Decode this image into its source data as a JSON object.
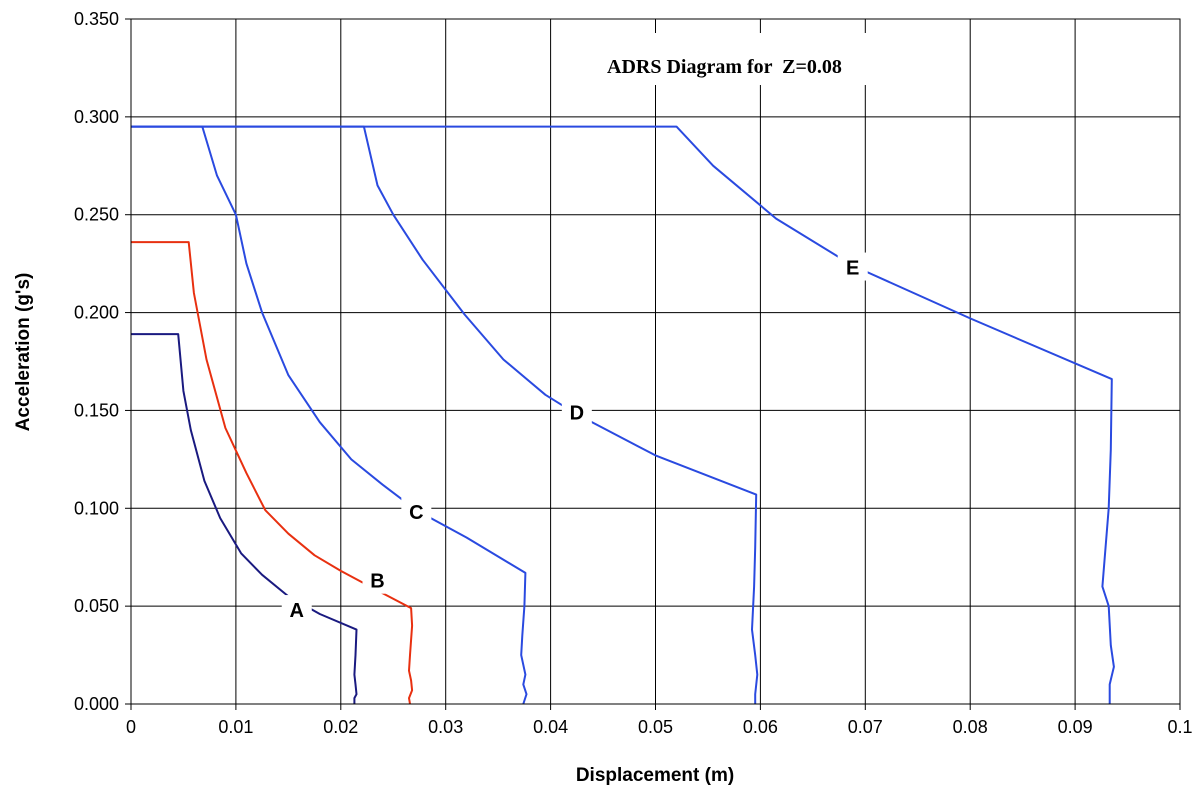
{
  "chart_data": {
    "type": "line",
    "title": "ADRS Diagram for  Z=0.08",
    "xlabel": "Displacement (m)",
    "ylabel": "Acceleration (g's)",
    "xlim": [
      0,
      0.1
    ],
    "ylim": [
      0,
      0.35
    ],
    "x_ticks": [
      "0",
      "0.01",
      "0.02",
      "0.03",
      "0.04",
      "0.05",
      "0.06",
      "0.07",
      "0.08",
      "0.09",
      "0.1"
    ],
    "y_ticks": [
      "0.000",
      "0.050",
      "0.100",
      "0.150",
      "0.200",
      "0.250",
      "0.300",
      "0.350"
    ],
    "grid": true,
    "legend": "none",
    "series": [
      {
        "name": "A",
        "color": "#1a1a80",
        "label_at": [
          0.0158,
          0.048
        ],
        "points": [
          [
            0,
            0.189
          ],
          [
            0.0045,
            0.189
          ],
          [
            0.005,
            0.16
          ],
          [
            0.0057,
            0.14
          ],
          [
            0.007,
            0.114
          ],
          [
            0.0085,
            0.095
          ],
          [
            0.0105,
            0.077
          ],
          [
            0.0125,
            0.066
          ],
          [
            0.015,
            0.055
          ],
          [
            0.018,
            0.046
          ],
          [
            0.0215,
            0.038
          ],
          [
            0.0214,
            0.025
          ],
          [
            0.0213,
            0.015
          ],
          [
            0.0214,
            0.01
          ],
          [
            0.0215,
            0.005
          ],
          [
            0.0213,
            0.003
          ],
          [
            0.0213,
            0.0
          ]
        ]
      },
      {
        "name": "B",
        "color": "#e83010",
        "label_at": [
          0.0235,
          0.063
        ],
        "points": [
          [
            0,
            0.236
          ],
          [
            0.0055,
            0.236
          ],
          [
            0.006,
            0.21
          ],
          [
            0.0072,
            0.176
          ],
          [
            0.009,
            0.141
          ],
          [
            0.011,
            0.118
          ],
          [
            0.0128,
            0.099
          ],
          [
            0.015,
            0.087
          ],
          [
            0.0175,
            0.076
          ],
          [
            0.02,
            0.068
          ],
          [
            0.0235,
            0.058
          ],
          [
            0.0267,
            0.049
          ],
          [
            0.0268,
            0.04
          ],
          [
            0.0266,
            0.025
          ],
          [
            0.0265,
            0.017
          ],
          [
            0.0267,
            0.012
          ],
          [
            0.0268,
            0.007
          ],
          [
            0.0265,
            0.003
          ],
          [
            0.0266,
            0.0
          ]
        ]
      },
      {
        "name": "C",
        "color": "#2a4ae0",
        "label_at": [
          0.0272,
          0.098
        ],
        "points": [
          [
            0,
            0.295
          ],
          [
            0.0068,
            0.295
          ],
          [
            0.0082,
            0.27
          ],
          [
            0.01,
            0.25
          ],
          [
            0.011,
            0.225
          ],
          [
            0.0125,
            0.2
          ],
          [
            0.015,
            0.168
          ],
          [
            0.018,
            0.144
          ],
          [
            0.021,
            0.125
          ],
          [
            0.024,
            0.112
          ],
          [
            0.0272,
            0.099
          ],
          [
            0.032,
            0.085
          ],
          [
            0.0376,
            0.067
          ],
          [
            0.0375,
            0.05
          ],
          [
            0.0373,
            0.035
          ],
          [
            0.0372,
            0.025
          ],
          [
            0.0376,
            0.015
          ],
          [
            0.0374,
            0.01
          ],
          [
            0.0377,
            0.005
          ],
          [
            0.0374,
            0.0
          ]
        ]
      },
      {
        "name": "D",
        "color": "#2a4ae0",
        "label_at": [
          0.0425,
          0.149
        ],
        "points": [
          [
            0,
            0.295
          ],
          [
            0.0222,
            0.295
          ],
          [
            0.0235,
            0.265
          ],
          [
            0.025,
            0.25
          ],
          [
            0.0278,
            0.227
          ],
          [
            0.0318,
            0.199
          ],
          [
            0.0355,
            0.176
          ],
          [
            0.0395,
            0.158
          ],
          [
            0.0425,
            0.148
          ],
          [
            0.05,
            0.127
          ],
          [
            0.0596,
            0.107
          ],
          [
            0.0595,
            0.08
          ],
          [
            0.0594,
            0.06
          ],
          [
            0.0592,
            0.038
          ],
          [
            0.0595,
            0.025
          ],
          [
            0.0597,
            0.015
          ],
          [
            0.0595,
            0.005
          ],
          [
            0.0595,
            0.0
          ]
        ]
      },
      {
        "name": "E",
        "color": "#2a4ae0",
        "label_at": [
          0.0688,
          0.223
        ],
        "points": [
          [
            0,
            0.295
          ],
          [
            0.052,
            0.295
          ],
          [
            0.0555,
            0.275
          ],
          [
            0.0615,
            0.248
          ],
          [
            0.0688,
            0.224
          ],
          [
            0.08,
            0.197
          ],
          [
            0.0935,
            0.166
          ],
          [
            0.0934,
            0.13
          ],
          [
            0.0932,
            0.1
          ],
          [
            0.0926,
            0.06
          ],
          [
            0.0932,
            0.05
          ],
          [
            0.0934,
            0.03
          ],
          [
            0.0937,
            0.019
          ],
          [
            0.0933,
            0.01
          ],
          [
            0.0933,
            0.0
          ]
        ]
      }
    ]
  }
}
